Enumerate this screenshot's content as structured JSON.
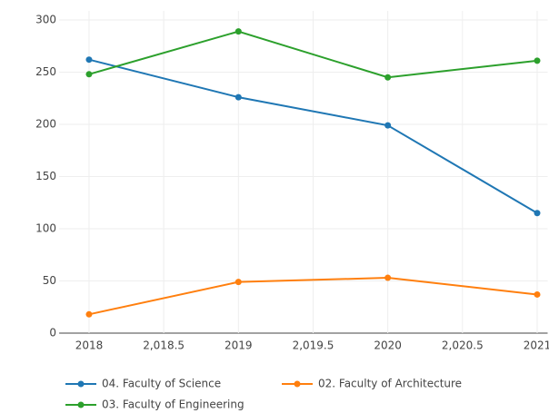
{
  "chart_data": {
    "type": "line",
    "x": [
      2018,
      2019,
      2020,
      2021
    ],
    "series": [
      {
        "name": "04. Faculty of Science",
        "color": "#1f77b4",
        "values": [
          262,
          226,
          199,
          115
        ]
      },
      {
        "name": "02. Faculty of Architecture",
        "color": "#ff7f0e",
        "values": [
          18,
          49,
          53,
          37
        ]
      },
      {
        "name": "03. Faculty of Engineering",
        "color": "#2ca02c",
        "values": [
          248,
          289,
          245,
          261
        ]
      }
    ],
    "xlim": [
      2017.8,
      2021.07
    ],
    "xticks": [
      2018,
      {
        "value": 2018.5,
        "label": "2,018.5"
      },
      2019,
      {
        "value": 2019.5,
        "label": "2,019.5"
      },
      2020,
      {
        "value": 2020.5,
        "label": "2,020.5"
      },
      2021
    ],
    "ylim": [
      0,
      300
    ],
    "yticks": [
      0,
      50,
      100,
      150,
      200,
      250,
      300
    ],
    "grid": true
  }
}
